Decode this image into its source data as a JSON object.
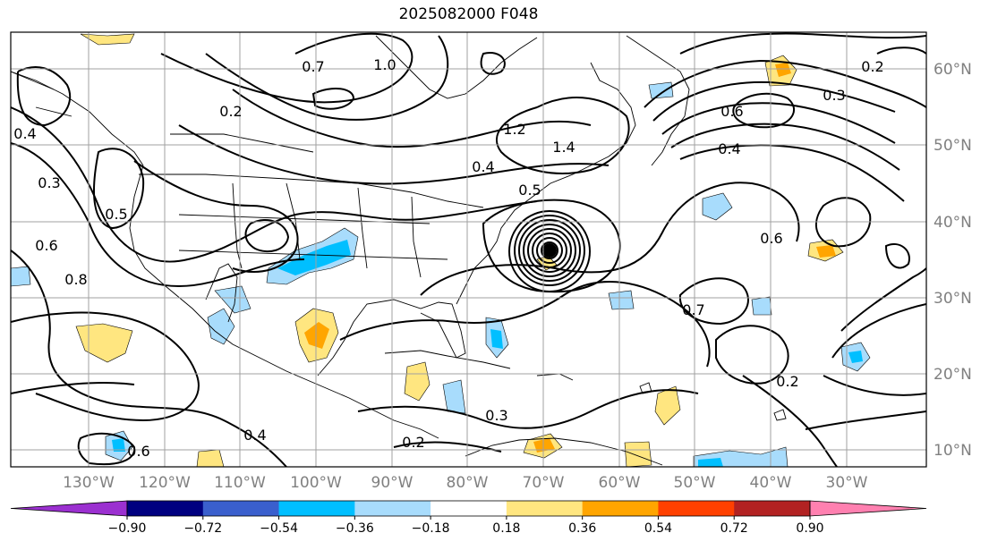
{
  "title": "2025082000 F048",
  "map": {
    "lon_labels": [
      "130°W",
      "120°W",
      "110°W",
      "100°W",
      "90°W",
      "80°W",
      "70°W",
      "60°W",
      "50°W",
      "40°W",
      "30°W"
    ],
    "lat_labels": [
      "60°N",
      "50°N",
      "40°N",
      "30°N",
      "20°N",
      "10°N"
    ],
    "contour_labels": [
      "0.2",
      "0.4",
      "0.6",
      "0.8",
      "0.5",
      "0.3",
      "0.7",
      "1.0",
      "1.2",
      "1.4",
      "0.6",
      "0.4",
      "0.2",
      "0.3",
      "0.4",
      "0.5",
      "0.6",
      "0.7",
      "0.2",
      "0.3",
      "0.2",
      "0.4",
      "0.6"
    ]
  },
  "colorbar": {
    "ticks": [
      "−0.90",
      "−0.72",
      "−0.54",
      "−0.36",
      "−0.18",
      "0.18",
      "0.36",
      "0.54",
      "0.72",
      "0.90"
    ],
    "colors": [
      "#9b30d0",
      "#000080",
      "#3a5fcd",
      "#00bfff",
      "#a8dcfc",
      "#ffffff",
      "#ffe680",
      "#ffa500",
      "#ff4000",
      "#b22222",
      "#ff80b0"
    ]
  }
}
